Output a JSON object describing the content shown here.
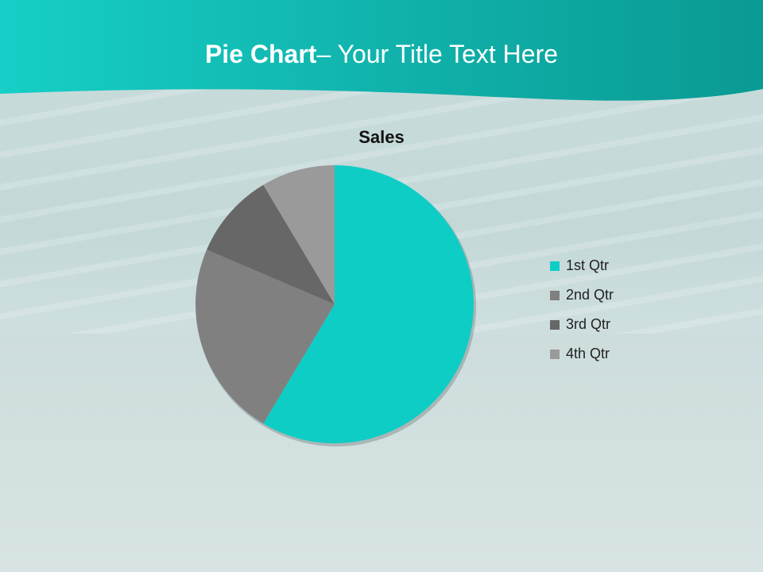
{
  "slide": {
    "title_bold": "Pie Chart",
    "title_rest": "– Your Title Text Here"
  },
  "colors": {
    "header": "#12b5ad",
    "header_light": "#1fd0c6"
  },
  "chart_data": {
    "type": "pie",
    "title": "Sales",
    "categories": [
      "1st Qtr",
      "2nd Qtr",
      "3rd Qtr",
      "4th Qtr"
    ],
    "values": [
      8.2,
      3.2,
      1.4,
      1.2
    ],
    "colors": [
      "#0ecdc5",
      "#808080",
      "#676767",
      "#9a9a9a"
    ],
    "legend_position": "right"
  }
}
